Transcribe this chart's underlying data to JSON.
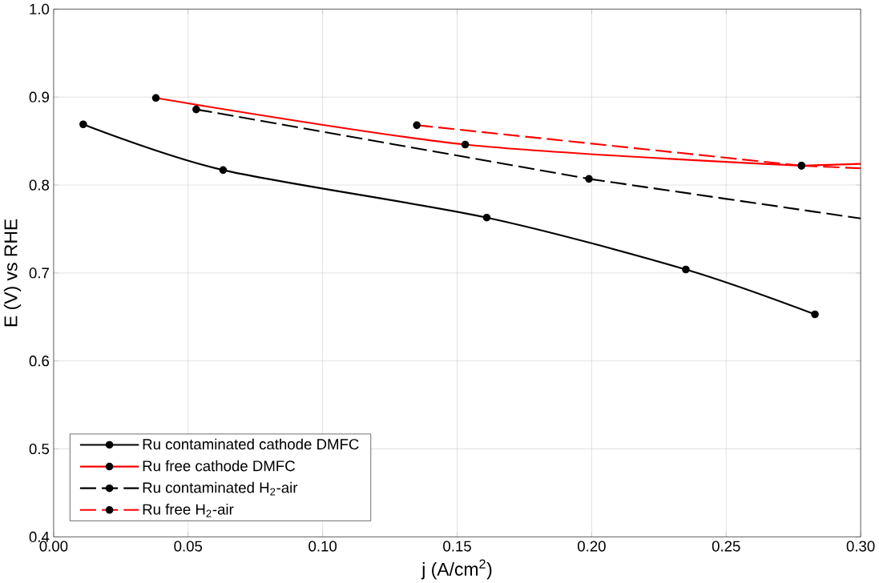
{
  "chart_data": {
    "type": "line",
    "xlabel": "j (A/cm$^{2}$)",
    "ylabel": "E (V) vs RHE",
    "xlim": [
      0,
      0.3
    ],
    "ylim": [
      0.4,
      1.0
    ],
    "xticks": [
      {
        "value": 0,
        "label": "0.00"
      },
      {
        "value": 0.05,
        "label": "0.05"
      },
      {
        "value": 0.1,
        "label": "0.10"
      },
      {
        "value": 0.15,
        "label": "0.15"
      },
      {
        "value": 0.2,
        "label": "0.20"
      },
      {
        "value": 0.25,
        "label": "0.25"
      },
      {
        "value": 0.3,
        "label": "0.30"
      }
    ],
    "yticks": [
      {
        "value": 0.4,
        "label": "0.4"
      },
      {
        "value": 0.5,
        "label": "0.5"
      },
      {
        "value": 0.6,
        "label": "0.6"
      },
      {
        "value": 0.7,
        "label": "0.7"
      },
      {
        "value": 0.8,
        "label": "0.8"
      },
      {
        "value": 0.9,
        "label": "0.9"
      },
      {
        "value": 1.0,
        "label": "1.0"
      }
    ],
    "grid": true,
    "legend": "bottom left",
    "marker": "circle",
    "series": [
      {
        "name": "Ru contaminated cathode DMFC",
        "color": "#000000",
        "line_style": "solid",
        "x": [
          0.011,
          0.063,
          0.161,
          0.235,
          0.283
        ],
        "values": [
          0.869,
          0.817,
          0.763,
          0.704,
          0.653
        ]
      },
      {
        "name": "Ru free cathode DMFC",
        "color": "#ff0000",
        "line_style": "solid",
        "x": [
          0.038,
          0.153,
          0.278
        ],
        "values": [
          0.899,
          0.846,
          0.822
        ]
      },
      {
        "name": "Ru contaminated H$_{2}$-air",
        "color": "#000000",
        "line_style": "dashed",
        "x": [
          0.053,
          0.199
        ],
        "values": [
          0.886,
          0.807
        ]
      },
      {
        "name": "Ru free H$_{2}$-air",
        "color": "#ff0000",
        "line_style": "dashed",
        "x": [
          0.135,
          0.278
        ],
        "values": [
          0.868,
          0.822
        ]
      },
      {
        "type": "line",
        "color": "#000000",
        "line_style": "dashed",
        "marker": "none",
        "x": [
          0.199,
          0.3
        ],
        "values": [
          0.807,
          0.762
        ]
      },
      {
        "type": "line",
        "color": "#ff0000",
        "line_style": "solid",
        "marker": "none",
        "x": [
          0.278,
          0.3
        ],
        "values": [
          0.822,
          0.824
        ]
      },
      {
        "type": "line",
        "color": "#ff0000",
        "line_style": "dashed",
        "marker": "none",
        "x": [
          0.278,
          0.3
        ],
        "values": [
          0.822,
          0.819
        ]
      }
    ]
  }
}
